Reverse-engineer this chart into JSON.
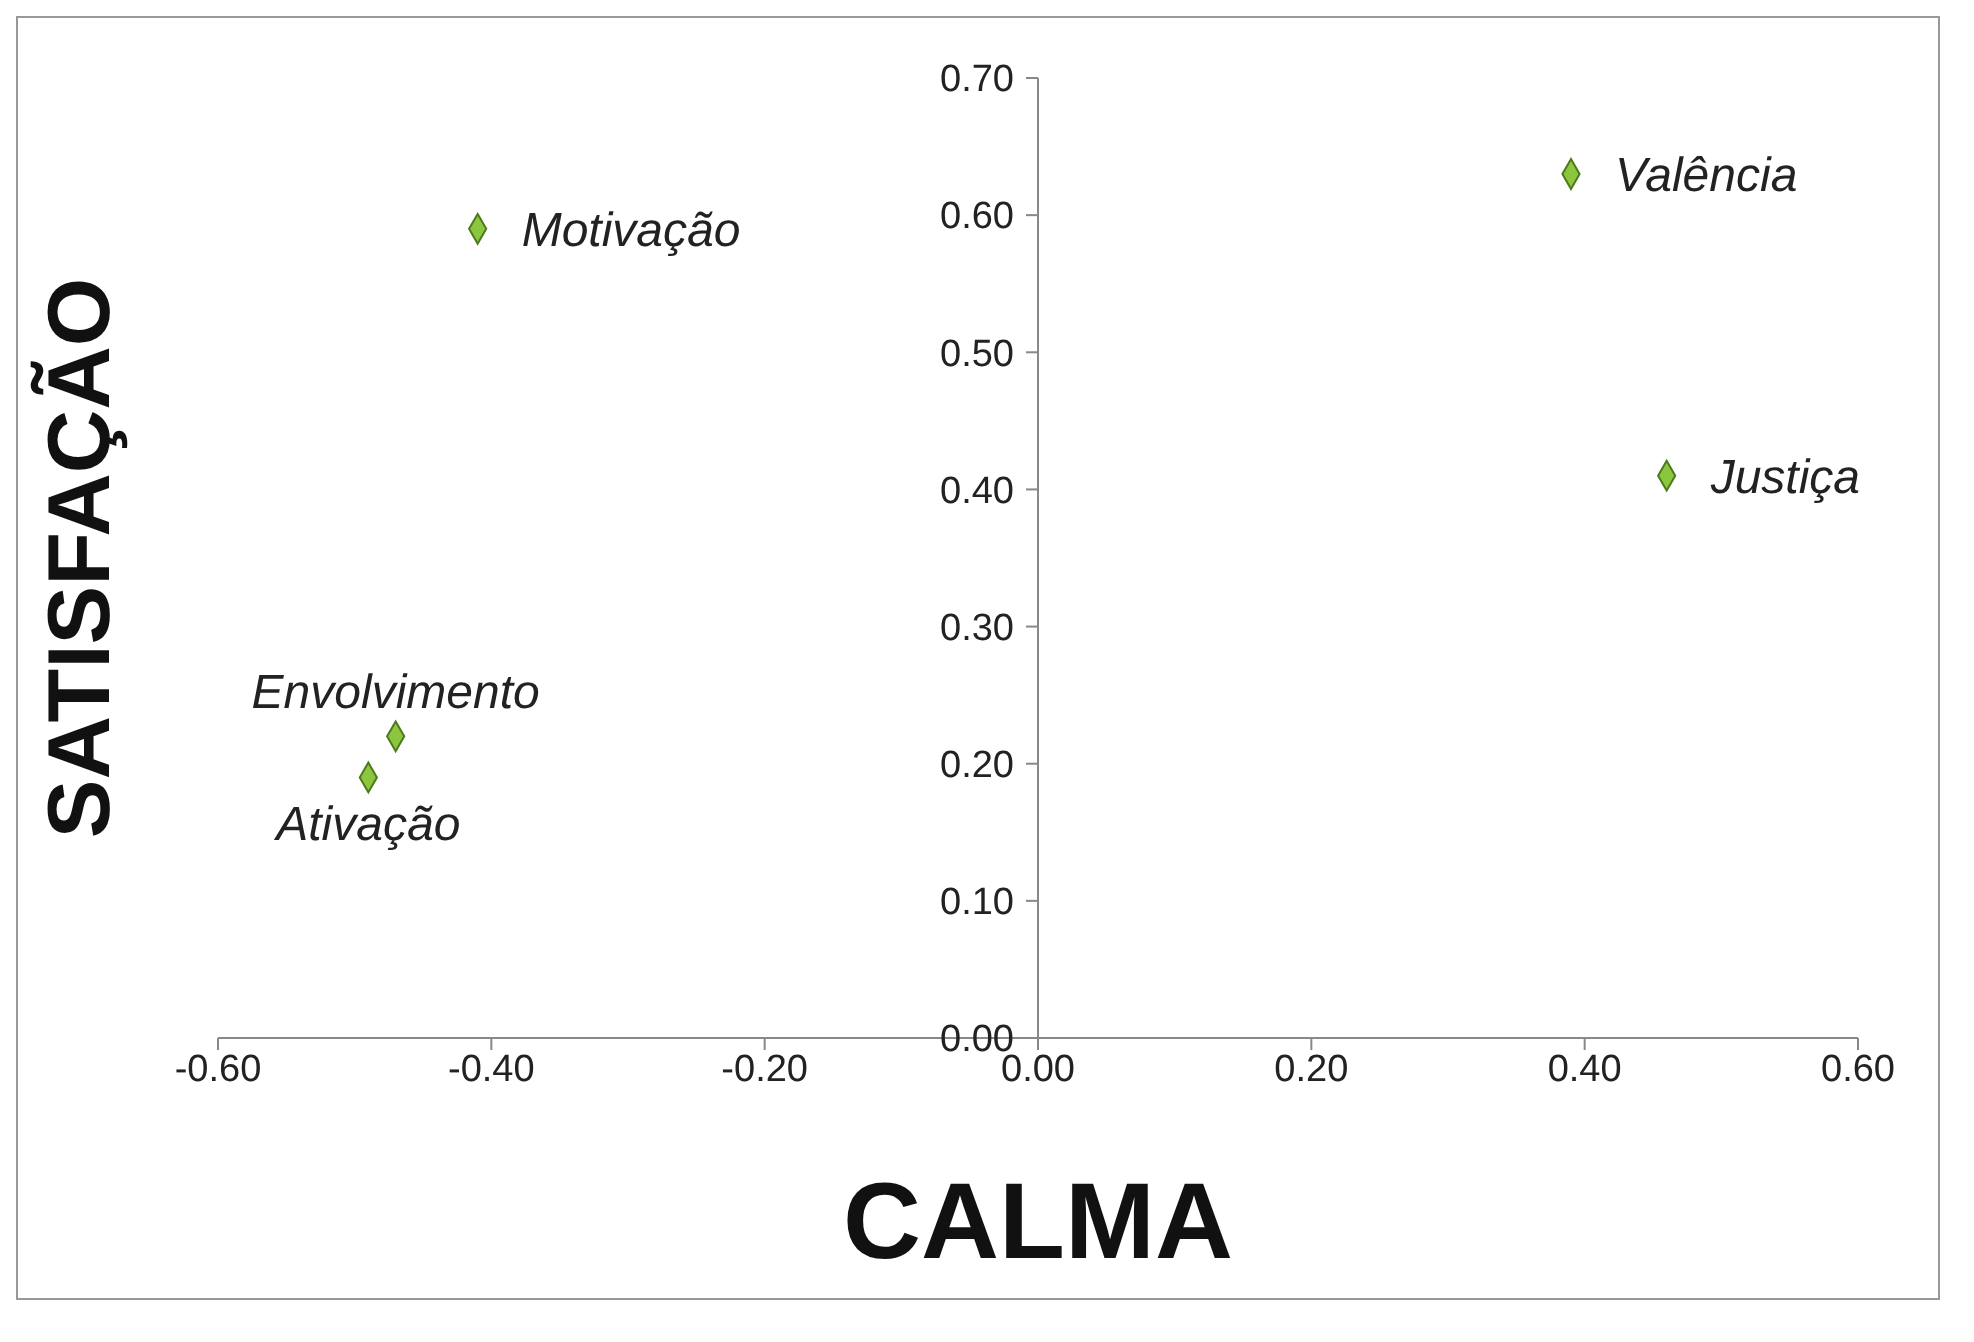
{
  "chart_data": {
    "type": "scatter",
    "xlabel": "CALMA",
    "ylabel": "SATISFAÇÃO",
    "x": [
      -0.41,
      0.39,
      0.46,
      -0.47,
      -0.49
    ],
    "series": [
      {
        "color": "#8cc63f",
        "values": [
          0.59,
          0.63,
          0.41,
          0.22,
          0.19
        ]
      }
    ],
    "annotations": [
      {
        "text": "Motivação",
        "x": -0.41,
        "y": 0.59
      },
      {
        "text": "Valência",
        "x": 0.39,
        "y": 0.63
      },
      {
        "text": "Justiça",
        "x": 0.46,
        "y": 0.41
      },
      {
        "text": "Envolvimento",
        "x": -0.47,
        "y": 0.22
      },
      {
        "text": "Ativação",
        "x": -0.49,
        "y": 0.19
      }
    ],
    "xlim": [
      -0.6,
      0.6
    ],
    "xticks": [
      {
        "value": -0.6,
        "label": "-0.60"
      },
      {
        "value": -0.4,
        "label": "-0.40"
      },
      {
        "value": -0.2,
        "label": "-0.20"
      },
      {
        "value": 0,
        "label": "0.00"
      },
      {
        "value": 0.2,
        "label": "0.20"
      },
      {
        "value": 0.4,
        "label": "0.40"
      },
      {
        "value": 0.6,
        "label": "0.60"
      }
    ],
    "ylim": [
      0,
      0.7
    ],
    "yticks": [
      {
        "value": 0,
        "label": "0.00"
      },
      {
        "value": 0.1,
        "label": "0.10"
      },
      {
        "value": 0.2,
        "label": "0.20"
      },
      {
        "value": 0.3,
        "label": "0.30"
      },
      {
        "value": 0.4,
        "label": "0.40"
      },
      {
        "value": 0.5,
        "label": "0.50"
      },
      {
        "value": 0.6,
        "label": "0.60"
      },
      {
        "value": 0.7,
        "label": "0.70"
      }
    ],
    "grid": false,
    "legend": false,
    "marker": "diamond"
  }
}
